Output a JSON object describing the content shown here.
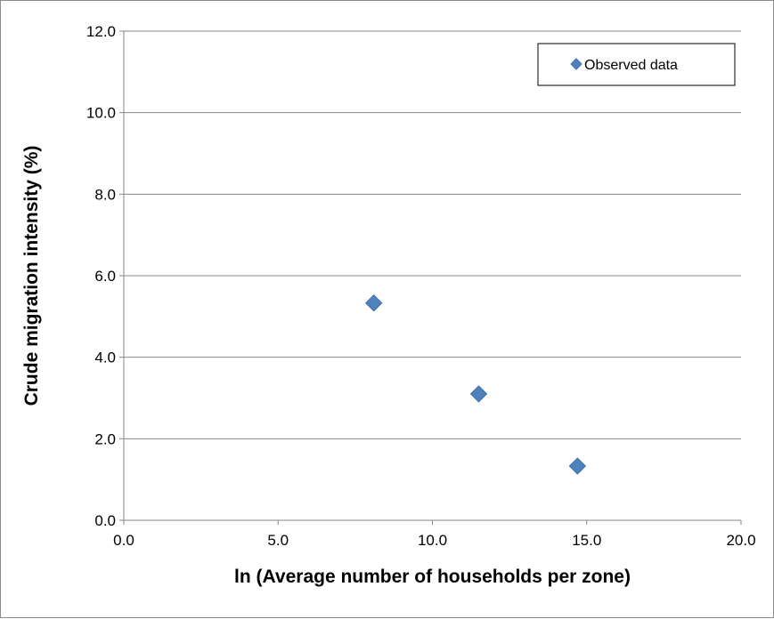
{
  "chart_data": {
    "type": "scatter",
    "title": "",
    "xlabel": "ln (Average number of households per zone)",
    "ylabel": "Crude migration intensity (%)",
    "xlim": [
      0,
      20
    ],
    "ylim": [
      0,
      12
    ],
    "x_ticks": [
      "0.0",
      "5.0",
      "10.0",
      "15.0",
      "20.0"
    ],
    "y_ticks": [
      "0.0",
      "2.0",
      "4.0",
      "6.0",
      "8.0",
      "10.0",
      "12.0"
    ],
    "grid": "horizontal",
    "legend_position": "top-right",
    "series": [
      {
        "name": "Observed data",
        "marker": "diamond",
        "color": "#4f81bd",
        "x": [
          8.1,
          11.5,
          14.7
        ],
        "y": [
          5.33,
          3.1,
          1.33
        ]
      }
    ]
  }
}
